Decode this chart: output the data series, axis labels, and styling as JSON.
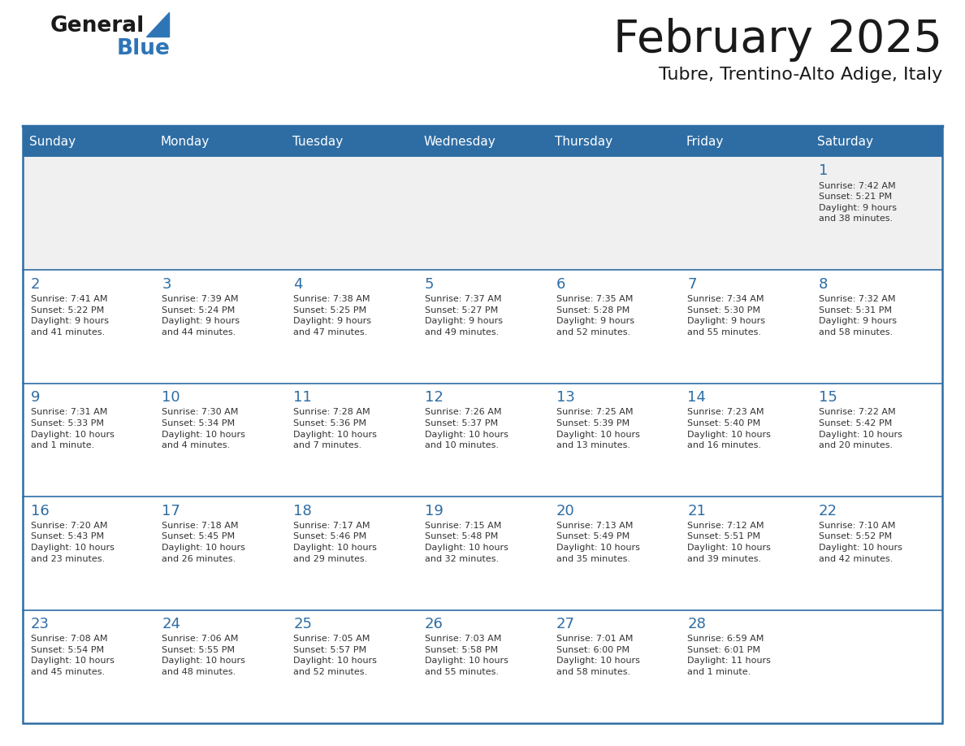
{
  "title": "February 2025",
  "subtitle": "Tubre, Trentino-Alto Adige, Italy",
  "days_of_week": [
    "Sunday",
    "Monday",
    "Tuesday",
    "Wednesday",
    "Thursday",
    "Friday",
    "Saturday"
  ],
  "header_bg": "#2E6DA4",
  "header_text": "#FFFFFF",
  "cell_bg_week1": "#F0F0F0",
  "cell_bg_white": "#FFFFFF",
  "row_separator_color": "#2E6DA4",
  "outer_border_color": "#2E6DA4",
  "day_number_color": "#2E6DA4",
  "info_text_color": "#333333",
  "title_color": "#1a1a1a",
  "logo_general_color": "#1a1a1a",
  "logo_blue_color": "#2E75B6",
  "weeks": [
    [
      {
        "day": null,
        "info": null
      },
      {
        "day": null,
        "info": null
      },
      {
        "day": null,
        "info": null
      },
      {
        "day": null,
        "info": null
      },
      {
        "day": null,
        "info": null
      },
      {
        "day": null,
        "info": null
      },
      {
        "day": 1,
        "info": "Sunrise: 7:42 AM\nSunset: 5:21 PM\nDaylight: 9 hours\nand 38 minutes."
      }
    ],
    [
      {
        "day": 2,
        "info": "Sunrise: 7:41 AM\nSunset: 5:22 PM\nDaylight: 9 hours\nand 41 minutes."
      },
      {
        "day": 3,
        "info": "Sunrise: 7:39 AM\nSunset: 5:24 PM\nDaylight: 9 hours\nand 44 minutes."
      },
      {
        "day": 4,
        "info": "Sunrise: 7:38 AM\nSunset: 5:25 PM\nDaylight: 9 hours\nand 47 minutes."
      },
      {
        "day": 5,
        "info": "Sunrise: 7:37 AM\nSunset: 5:27 PM\nDaylight: 9 hours\nand 49 minutes."
      },
      {
        "day": 6,
        "info": "Sunrise: 7:35 AM\nSunset: 5:28 PM\nDaylight: 9 hours\nand 52 minutes."
      },
      {
        "day": 7,
        "info": "Sunrise: 7:34 AM\nSunset: 5:30 PM\nDaylight: 9 hours\nand 55 minutes."
      },
      {
        "day": 8,
        "info": "Sunrise: 7:32 AM\nSunset: 5:31 PM\nDaylight: 9 hours\nand 58 minutes."
      }
    ],
    [
      {
        "day": 9,
        "info": "Sunrise: 7:31 AM\nSunset: 5:33 PM\nDaylight: 10 hours\nand 1 minute."
      },
      {
        "day": 10,
        "info": "Sunrise: 7:30 AM\nSunset: 5:34 PM\nDaylight: 10 hours\nand 4 minutes."
      },
      {
        "day": 11,
        "info": "Sunrise: 7:28 AM\nSunset: 5:36 PM\nDaylight: 10 hours\nand 7 minutes."
      },
      {
        "day": 12,
        "info": "Sunrise: 7:26 AM\nSunset: 5:37 PM\nDaylight: 10 hours\nand 10 minutes."
      },
      {
        "day": 13,
        "info": "Sunrise: 7:25 AM\nSunset: 5:39 PM\nDaylight: 10 hours\nand 13 minutes."
      },
      {
        "day": 14,
        "info": "Sunrise: 7:23 AM\nSunset: 5:40 PM\nDaylight: 10 hours\nand 16 minutes."
      },
      {
        "day": 15,
        "info": "Sunrise: 7:22 AM\nSunset: 5:42 PM\nDaylight: 10 hours\nand 20 minutes."
      }
    ],
    [
      {
        "day": 16,
        "info": "Sunrise: 7:20 AM\nSunset: 5:43 PM\nDaylight: 10 hours\nand 23 minutes."
      },
      {
        "day": 17,
        "info": "Sunrise: 7:18 AM\nSunset: 5:45 PM\nDaylight: 10 hours\nand 26 minutes."
      },
      {
        "day": 18,
        "info": "Sunrise: 7:17 AM\nSunset: 5:46 PM\nDaylight: 10 hours\nand 29 minutes."
      },
      {
        "day": 19,
        "info": "Sunrise: 7:15 AM\nSunset: 5:48 PM\nDaylight: 10 hours\nand 32 minutes."
      },
      {
        "day": 20,
        "info": "Sunrise: 7:13 AM\nSunset: 5:49 PM\nDaylight: 10 hours\nand 35 minutes."
      },
      {
        "day": 21,
        "info": "Sunrise: 7:12 AM\nSunset: 5:51 PM\nDaylight: 10 hours\nand 39 minutes."
      },
      {
        "day": 22,
        "info": "Sunrise: 7:10 AM\nSunset: 5:52 PM\nDaylight: 10 hours\nand 42 minutes."
      }
    ],
    [
      {
        "day": 23,
        "info": "Sunrise: 7:08 AM\nSunset: 5:54 PM\nDaylight: 10 hours\nand 45 minutes."
      },
      {
        "day": 24,
        "info": "Sunrise: 7:06 AM\nSunset: 5:55 PM\nDaylight: 10 hours\nand 48 minutes."
      },
      {
        "day": 25,
        "info": "Sunrise: 7:05 AM\nSunset: 5:57 PM\nDaylight: 10 hours\nand 52 minutes."
      },
      {
        "day": 26,
        "info": "Sunrise: 7:03 AM\nSunset: 5:58 PM\nDaylight: 10 hours\nand 55 minutes."
      },
      {
        "day": 27,
        "info": "Sunrise: 7:01 AM\nSunset: 6:00 PM\nDaylight: 10 hours\nand 58 minutes."
      },
      {
        "day": 28,
        "info": "Sunrise: 6:59 AM\nSunset: 6:01 PM\nDaylight: 11 hours\nand 1 minute."
      },
      {
        "day": null,
        "info": null
      }
    ]
  ]
}
